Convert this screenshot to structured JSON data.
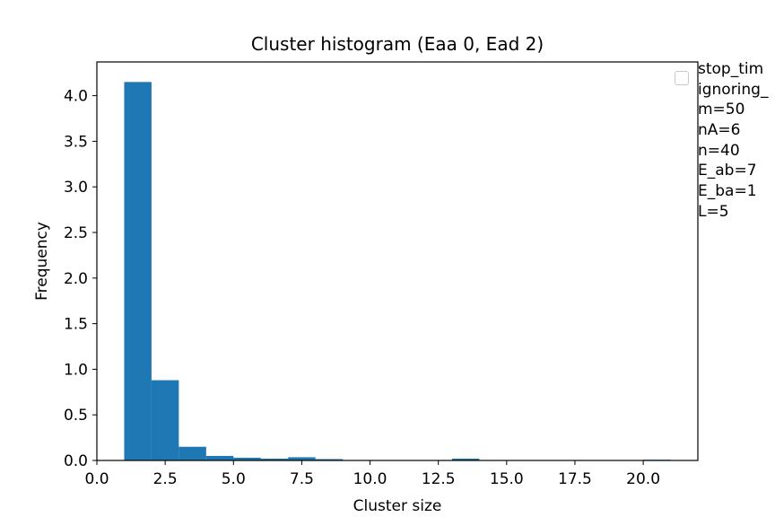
{
  "chart_data": {
    "type": "bar",
    "title": "Cluster histogram (Eaa 0, Ead 2)",
    "xlabel": "Cluster size",
    "ylabel": "Frequency",
    "xlim": [
      0,
      22
    ],
    "ylim": [
      0,
      4.37
    ],
    "xticks": [
      "0.0",
      "2.5",
      "5.0",
      "7.5",
      "10.0",
      "12.5",
      "15.0",
      "17.5",
      "20.0"
    ],
    "xtick_values": [
      0,
      2.5,
      5,
      7.5,
      10,
      12.5,
      15,
      17.5,
      20
    ],
    "yticks": [
      "0.0",
      "0.5",
      "1.0",
      "1.5",
      "2.0",
      "2.5",
      "3.0",
      "3.5",
      "4.0"
    ],
    "ytick_values": [
      0,
      0.5,
      1,
      1.5,
      2,
      2.5,
      3,
      3.5,
      4
    ],
    "bins": [
      {
        "x0": 1,
        "x1": 2,
        "value": 4.15
      },
      {
        "x0": 2,
        "x1": 3,
        "value": 0.88
      },
      {
        "x0": 3,
        "x1": 4,
        "value": 0.15
      },
      {
        "x0": 4,
        "x1": 5,
        "value": 0.05
      },
      {
        "x0": 5,
        "x1": 6,
        "value": 0.03
      },
      {
        "x0": 6,
        "x1": 7,
        "value": 0.02
      },
      {
        "x0": 7,
        "x1": 8,
        "value": 0.035
      },
      {
        "x0": 8,
        "x1": 9,
        "value": 0.015
      },
      {
        "x0": 9,
        "x1": 10,
        "value": 0
      },
      {
        "x0": 10,
        "x1": 11,
        "value": 0
      },
      {
        "x0": 11,
        "x1": 12,
        "value": 0
      },
      {
        "x0": 12,
        "x1": 13,
        "value": 0
      },
      {
        "x0": 13,
        "x1": 14,
        "value": 0.02
      },
      {
        "x0": 14,
        "x1": 15,
        "value": 0
      },
      {
        "x0": 15,
        "x1": 16,
        "value": 0
      },
      {
        "x0": 16,
        "x1": 17,
        "value": 0
      },
      {
        "x0": 17,
        "x1": 18,
        "value": 0
      },
      {
        "x0": 18,
        "x1": 19,
        "value": 0
      },
      {
        "x0": 19,
        "x1": 20,
        "value": 0
      },
      {
        "x0": 20,
        "x1": 21,
        "value": 0.008
      }
    ],
    "bar_color": "#1f77b4",
    "grid": false,
    "legend_placement": "upper-right-outside",
    "legend_entries": [
      "stop_tim",
      "ignoring_",
      "m=50",
      "nA=6",
      "n=40",
      "E_ab=7",
      "E_ba=1",
      "L=5"
    ]
  }
}
